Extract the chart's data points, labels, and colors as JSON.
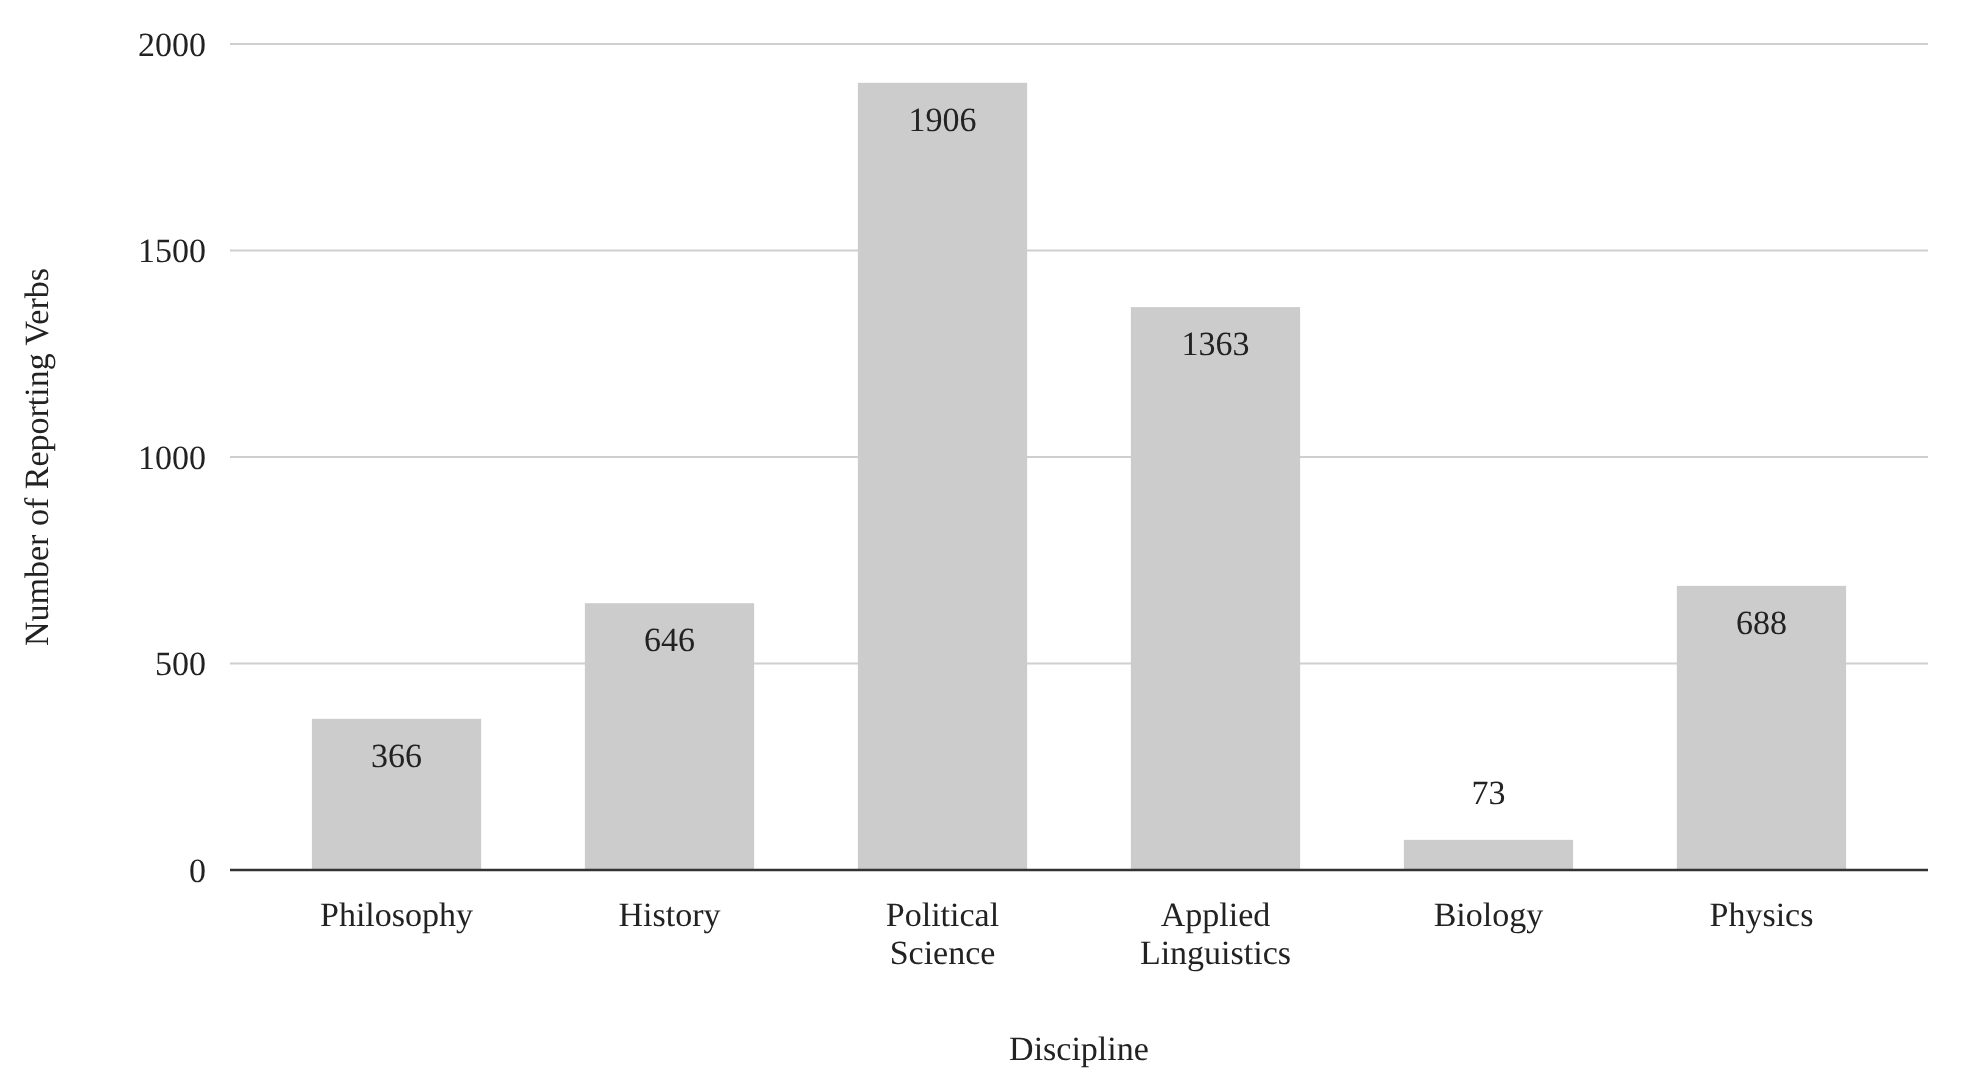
{
  "chart_data": {
    "type": "bar",
    "xlabel": "Discipline",
    "ylabel": "Number of Reporting Verbs",
    "categories": [
      "Philosophy",
      "History",
      "Political Science",
      "Applied Linguistics",
      "Biology",
      "Physics"
    ],
    "values": [
      366,
      646,
      1906,
      1363,
      73,
      688
    ],
    "color": "#cccccc",
    "ylim": [
      0,
      2000
    ],
    "yticks": [
      0,
      500,
      1000,
      1500,
      2000
    ],
    "grid": "y",
    "data_labels": true
  }
}
